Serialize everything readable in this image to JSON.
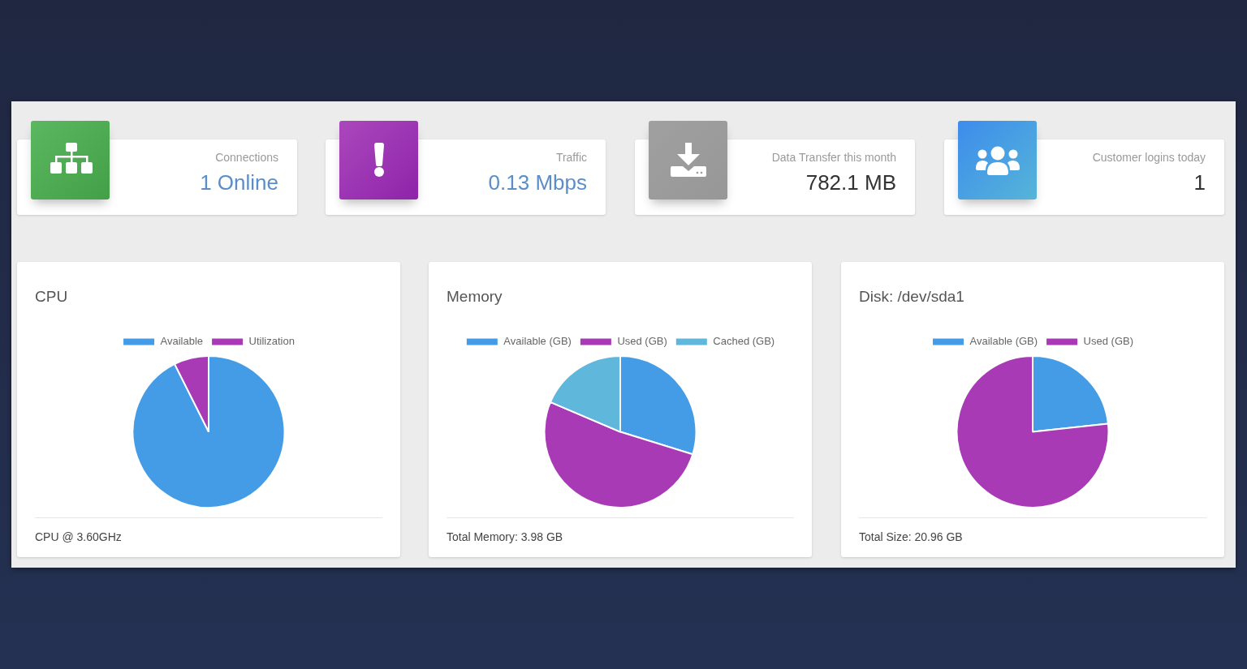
{
  "chart_data": [
    {
      "type": "other",
      "title": "Connections",
      "annotations": [
        "1 Online"
      ]
    },
    {
      "type": "other",
      "title": "Traffic",
      "annotations": [
        "0.13 Mbps"
      ]
    },
    {
      "type": "other",
      "title": "Data Transfer this month",
      "annotations": [
        "782.1 MB"
      ]
    },
    {
      "type": "other",
      "title": "Customer logins today",
      "annotations": [
        "1"
      ]
    },
    {
      "type": "pie",
      "title": "CPU",
      "categories": [
        "Available",
        "Utilization"
      ],
      "values": [
        92.6,
        7.4
      ],
      "colors": [
        "#459ce6",
        "#a83ab6"
      ],
      "legend": "top",
      "annotations": [
        "CPU @ 3.60GHz"
      ]
    },
    {
      "type": "pie",
      "title": "Memory",
      "categories": [
        "Available (GB)",
        "Used (GB)",
        "Cached (GB)"
      ],
      "values": [
        29.8,
        51.6,
        18.6
      ],
      "colors": [
        "#459ce6",
        "#a83ab6",
        "#5fb7dc"
      ],
      "legend": "top",
      "annotations": [
        "Total Memory: 3.98 GB"
      ]
    },
    {
      "type": "pie",
      "title": "Disk: /dev/sda1",
      "categories": [
        "Available (GB)",
        "Used (GB)"
      ],
      "values": [
        23.3,
        76.7
      ],
      "colors": [
        "#459ce6",
        "#a83ab6"
      ],
      "legend": "top",
      "annotations": [
        "Total Size: 20.96 GB"
      ]
    }
  ]
}
